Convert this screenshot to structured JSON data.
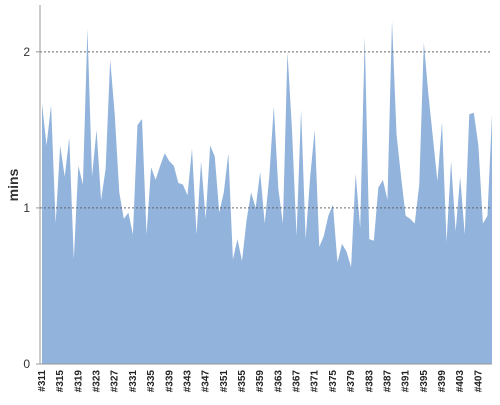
{
  "chart_data": {
    "type": "area",
    "y_label": "mins",
    "categories": [
      "#311",
      null,
      null,
      null,
      "#315",
      null,
      null,
      null,
      "#319",
      null,
      null,
      null,
      "#323",
      null,
      null,
      null,
      "#327",
      null,
      null,
      null,
      "#331",
      null,
      null,
      null,
      "#335",
      null,
      null,
      null,
      "#339",
      null,
      null,
      null,
      "#343",
      null,
      null,
      null,
      "#347",
      null,
      null,
      null,
      "#351",
      null,
      null,
      null,
      "#355",
      null,
      null,
      null,
      "#359",
      null,
      null,
      null,
      "#363",
      null,
      null,
      null,
      "#367",
      null,
      null,
      null,
      "#371",
      null,
      null,
      null,
      "#375",
      null,
      null,
      null,
      "#379",
      null,
      null,
      null,
      "#383",
      null,
      null,
      null,
      "#387",
      null,
      null,
      null,
      "#391",
      null,
      null,
      null,
      "#395",
      null,
      null,
      null,
      "#399",
      null,
      null,
      null,
      "#403",
      null,
      null,
      null,
      "#407",
      null,
      null,
      null
    ],
    "values": [
      1.67,
      1.4,
      1.66,
      0.9,
      1.4,
      1.2,
      1.45,
      0.67,
      1.27,
      1.15,
      2.15,
      1.2,
      1.5,
      1.05,
      1.25,
      1.95,
      1.6,
      1.1,
      0.93,
      0.97,
      0.83,
      1.53,
      1.57,
      0.83,
      1.26,
      1.18,
      1.27,
      1.35,
      1.3,
      1.27,
      1.16,
      1.15,
      1.08,
      1.38,
      0.83,
      1.3,
      0.93,
      1.4,
      1.33,
      0.97,
      1.1,
      1.35,
      0.67,
      0.8,
      0.66,
      0.92,
      1.1,
      1.0,
      1.23,
      0.9,
      1.2,
      1.65,
      1.12,
      0.9,
      2.0,
      1.5,
      0.82,
      1.63,
      0.8,
      1.2,
      1.5,
      0.75,
      0.82,
      0.95,
      1.02,
      0.65,
      0.77,
      0.72,
      0.62,
      1.22,
      0.87,
      2.1,
      0.8,
      0.79,
      1.13,
      1.18,
      1.05,
      2.2,
      1.47,
      1.2,
      0.95,
      0.93,
      0.9,
      1.15,
      2.06,
      1.73,
      1.45,
      1.17,
      1.55,
      0.78,
      1.3,
      0.85,
      1.2,
      0.83,
      1.6,
      1.61,
      1.4,
      0.9,
      0.95,
      1.6
    ],
    "color": "#91b3dc",
    "ylim": [
      0,
      2.3
    ],
    "yticks": [
      0,
      1,
      2
    ],
    "grid": true
  }
}
